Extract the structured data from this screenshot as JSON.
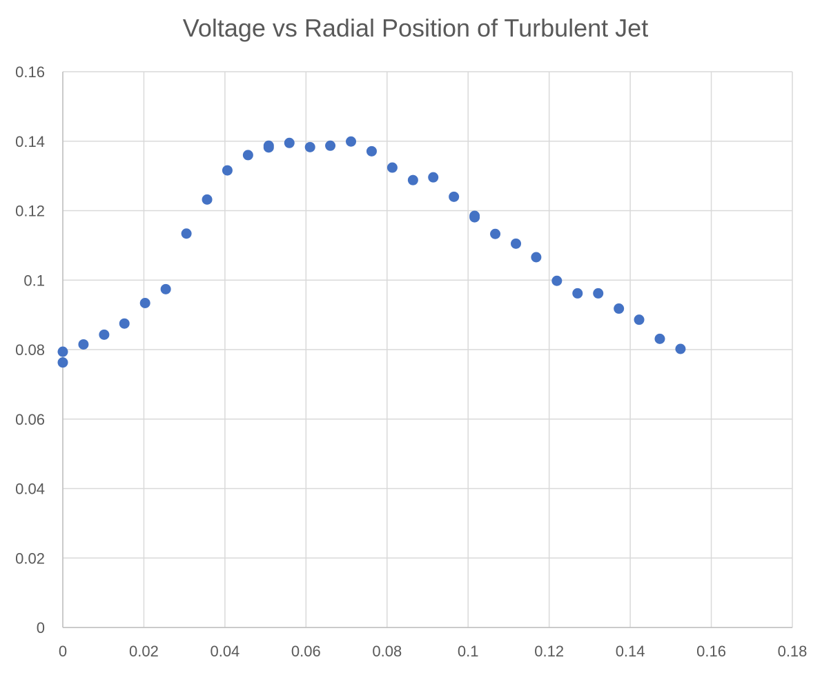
{
  "chart_data": {
    "type": "scatter",
    "title": "Voltage vs Radial Position of Turbulent Jet",
    "xlabel": "",
    "ylabel": "",
    "xlim": [
      0,
      0.18
    ],
    "ylim": [
      0,
      0.16
    ],
    "x_ticks": [
      0,
      0.02,
      0.04,
      0.06,
      0.08,
      0.1,
      0.12,
      0.14,
      0.16,
      0.18
    ],
    "x_tick_labels": [
      "0",
      "0.02",
      "0.04",
      "0.06",
      "0.08",
      "0.1",
      "0.12",
      "0.14",
      "0.16",
      "0.18"
    ],
    "y_ticks": [
      0,
      0.02,
      0.04,
      0.06,
      0.08,
      0.1,
      0.12,
      0.14,
      0.16
    ],
    "y_tick_labels": [
      "0",
      "0.02",
      "0.04",
      "0.06",
      "0.08",
      "0.1",
      "0.12",
      "0.14",
      "0.16"
    ],
    "grid": true,
    "legend": "none",
    "marker_color": "#4472C4",
    "series": [
      {
        "x": [
          0.0,
          0.0,
          0.0051,
          0.0102,
          0.0152,
          0.0203,
          0.0254,
          0.0305,
          0.0356,
          0.0406,
          0.0457,
          0.0508,
          0.0508,
          0.0559,
          0.061,
          0.066,
          0.0711,
          0.0762,
          0.0813,
          0.0864,
          0.0914,
          0.0965,
          0.1016,
          0.1016,
          0.1067,
          0.1118,
          0.1168,
          0.1219,
          0.127,
          0.1321,
          0.1372,
          0.1422,
          0.1473,
          0.1524
        ],
        "y": [
          0.0794,
          0.0763,
          0.0815,
          0.0843,
          0.0875,
          0.0934,
          0.0974,
          0.1134,
          0.1232,
          0.1316,
          0.136,
          0.1387,
          0.1382,
          0.1395,
          0.1383,
          0.1387,
          0.1399,
          0.1371,
          0.1324,
          0.1288,
          0.1296,
          0.124,
          0.1185,
          0.1181,
          0.1133,
          0.1105,
          0.1066,
          0.0998,
          0.0962,
          0.0962,
          0.0918,
          0.0886,
          0.0831,
          0.0802
        ]
      }
    ]
  }
}
